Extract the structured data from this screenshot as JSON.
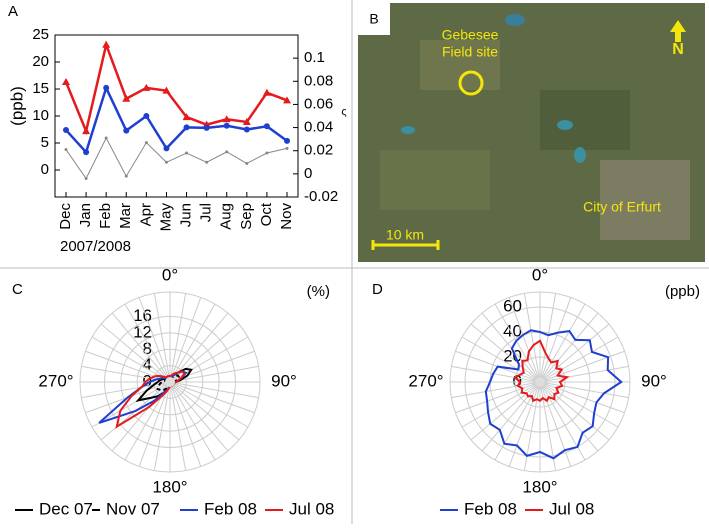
{
  "chart_data": [
    {
      "type": "line",
      "panel": "A",
      "ylabel": "(ppb)",
      "y2label": "ς",
      "xlabel": "2007/2008",
      "categories": [
        "Dec",
        "Jan",
        "Feb",
        "Mar",
        "Apr",
        "May",
        "Jun",
        "Jul",
        "Aug",
        "Sep",
        "Oct",
        "Nov"
      ],
      "series": [
        {
          "color": "#e41a1c",
          "marker": "triangle",
          "values": [
            16.3,
            7.2,
            23.2,
            13.2,
            15.2,
            14.7,
            9.8,
            8.4,
            9.4,
            8.9,
            14.3,
            12.9
          ]
        },
        {
          "color": "#1f3fd0",
          "marker": "circle",
          "values": [
            7.4,
            3.3,
            15.2,
            7.3,
            10,
            4,
            7.9,
            7.8,
            8.2,
            7.5,
            8.1,
            5.4
          ]
        },
        {
          "color": "#888888",
          "marker": "dot",
          "axis": "y2",
          "values": [
            0.021,
            -0.004,
            0.031,
            -0.002,
            0.027,
            0.01,
            0.018,
            0.01,
            0.019,
            0.009,
            0.018,
            0.022
          ]
        }
      ],
      "ylim": [
        -5,
        25
      ],
      "yticks": [
        0,
        5,
        10,
        15,
        20,
        25
      ],
      "y2lim": [
        -0.02,
        0.12
      ],
      "y2ticks": [
        -0.02,
        0,
        0.02,
        0.04,
        0.06,
        0.08,
        0.1
      ]
    },
    {
      "type": "polar",
      "panel": "C",
      "unit": "(%)",
      "rlim": [
        0,
        22
      ],
      "rticks": [
        0,
        4,
        8,
        12,
        16
      ],
      "thetaticks": [
        {
          "value": 0,
          "label": "0°"
        },
        {
          "value": 90,
          "label": "90°"
        },
        {
          "value": 180,
          "label": "180°"
        },
        {
          "value": 270,
          "label": "270°"
        }
      ],
      "theta": [
        0,
        10,
        20,
        30,
        40,
        50,
        60,
        70,
        80,
        90,
        100,
        110,
        120,
        130,
        140,
        150,
        160,
        170,
        180,
        190,
        200,
        210,
        220,
        230,
        240,
        250,
        260,
        270,
        280,
        290,
        300,
        310,
        320,
        330,
        340,
        350
      ],
      "series": [
        {
          "name": "Dec 07",
          "color": "#000000",
          "dash": false,
          "values": [
            1,
            1,
            1.5,
            2,
            3,
            5,
            6,
            4.5,
            2.5,
            1.5,
            1,
            1,
            1,
            1,
            1,
            1,
            1,
            1,
            1,
            1.5,
            2,
            3,
            4.5,
            6,
            9,
            6,
            4,
            3,
            2.5,
            2,
            1.5,
            1,
            1,
            1,
            1,
            1
          ]
        },
        {
          "name": "Nov 07",
          "color": "#000000",
          "dash": true,
          "values": [
            1,
            1,
            1,
            1.5,
            2,
            2.5,
            2.5,
            2,
            1.5,
            1,
            1,
            1,
            1,
            1,
            1,
            1,
            1,
            1,
            1,
            1,
            1.5,
            2,
            2.5,
            3,
            3.5,
            3,
            2.5,
            2,
            1.5,
            1,
            1,
            1,
            1,
            1,
            1,
            1
          ]
        },
        {
          "name": "Feb 08",
          "color": "#1f3fd0",
          "dash": false,
          "values": [
            1,
            1,
            1.5,
            2,
            3,
            4,
            4.5,
            3,
            2,
            1.5,
            1,
            1,
            1,
            1,
            1,
            1,
            1,
            1,
            1,
            1.5,
            2,
            3,
            6,
            11,
            20,
            11,
            7,
            5,
            3.5,
            2.5,
            2,
            1.5,
            1,
            1,
            1,
            1
          ]
        },
        {
          "name": "Jul 08",
          "color": "#e41a1c",
          "dash": false,
          "values": [
            1.5,
            1.5,
            2,
            2.5,
            3,
            4,
            4,
            3,
            2,
            1.5,
            1,
            1,
            1,
            1,
            1,
            1,
            1,
            1,
            1,
            1.5,
            2.5,
            4,
            8,
            17,
            14,
            10,
            7,
            6,
            5,
            4,
            3,
            2,
            1.5,
            1.5,
            1.5,
            1.5
          ]
        }
      ]
    },
    {
      "type": "polar",
      "panel": "D",
      "unit": "(ppb)",
      "rlim": [
        0,
        72
      ],
      "rticks": [
        0,
        20,
        40,
        60
      ],
      "thetaticks": [
        {
          "value": 0,
          "label": "0°"
        },
        {
          "value": 90,
          "label": "90°"
        },
        {
          "value": 180,
          "label": "180°"
        },
        {
          "value": 270,
          "label": "270°"
        }
      ],
      "theta": [
        0,
        10,
        20,
        30,
        40,
        50,
        60,
        70,
        80,
        90,
        100,
        110,
        120,
        130,
        140,
        150,
        160,
        170,
        180,
        190,
        200,
        210,
        220,
        230,
        240,
        250,
        260,
        270,
        280,
        290,
        300,
        310,
        320,
        330,
        340,
        350
      ],
      "series": [
        {
          "name": "Feb 08",
          "color": "#1f3fd0",
          "dash": false,
          "values": [
            40,
            38,
            42,
            47,
            44,
            52,
            48,
            58,
            55,
            65,
            52,
            48,
            50,
            55,
            53,
            60,
            58,
            62,
            56,
            60,
            54,
            57,
            50,
            52,
            48,
            45,
            44,
            40,
            38,
            36,
            20,
            22,
            35,
            38,
            40,
            42
          ]
        },
        {
          "name": "Jul 08",
          "color": "#e41a1c",
          "dash": false,
          "values": [
            33,
            24,
            20,
            18,
            22,
            17,
            20,
            15,
            22,
            16,
            18,
            14,
            17,
            15,
            18,
            14,
            16,
            13,
            15,
            14,
            16,
            13,
            15,
            14,
            17,
            15,
            18,
            16,
            20,
            17,
            15,
            18,
            22,
            20,
            26,
            30
          ]
        }
      ]
    }
  ],
  "map": {
    "panel": "B",
    "site_line1": "Gebesee",
    "site_line2": "Field site",
    "north": "N",
    "city": "City of Erfurt",
    "scale": "10 km"
  }
}
